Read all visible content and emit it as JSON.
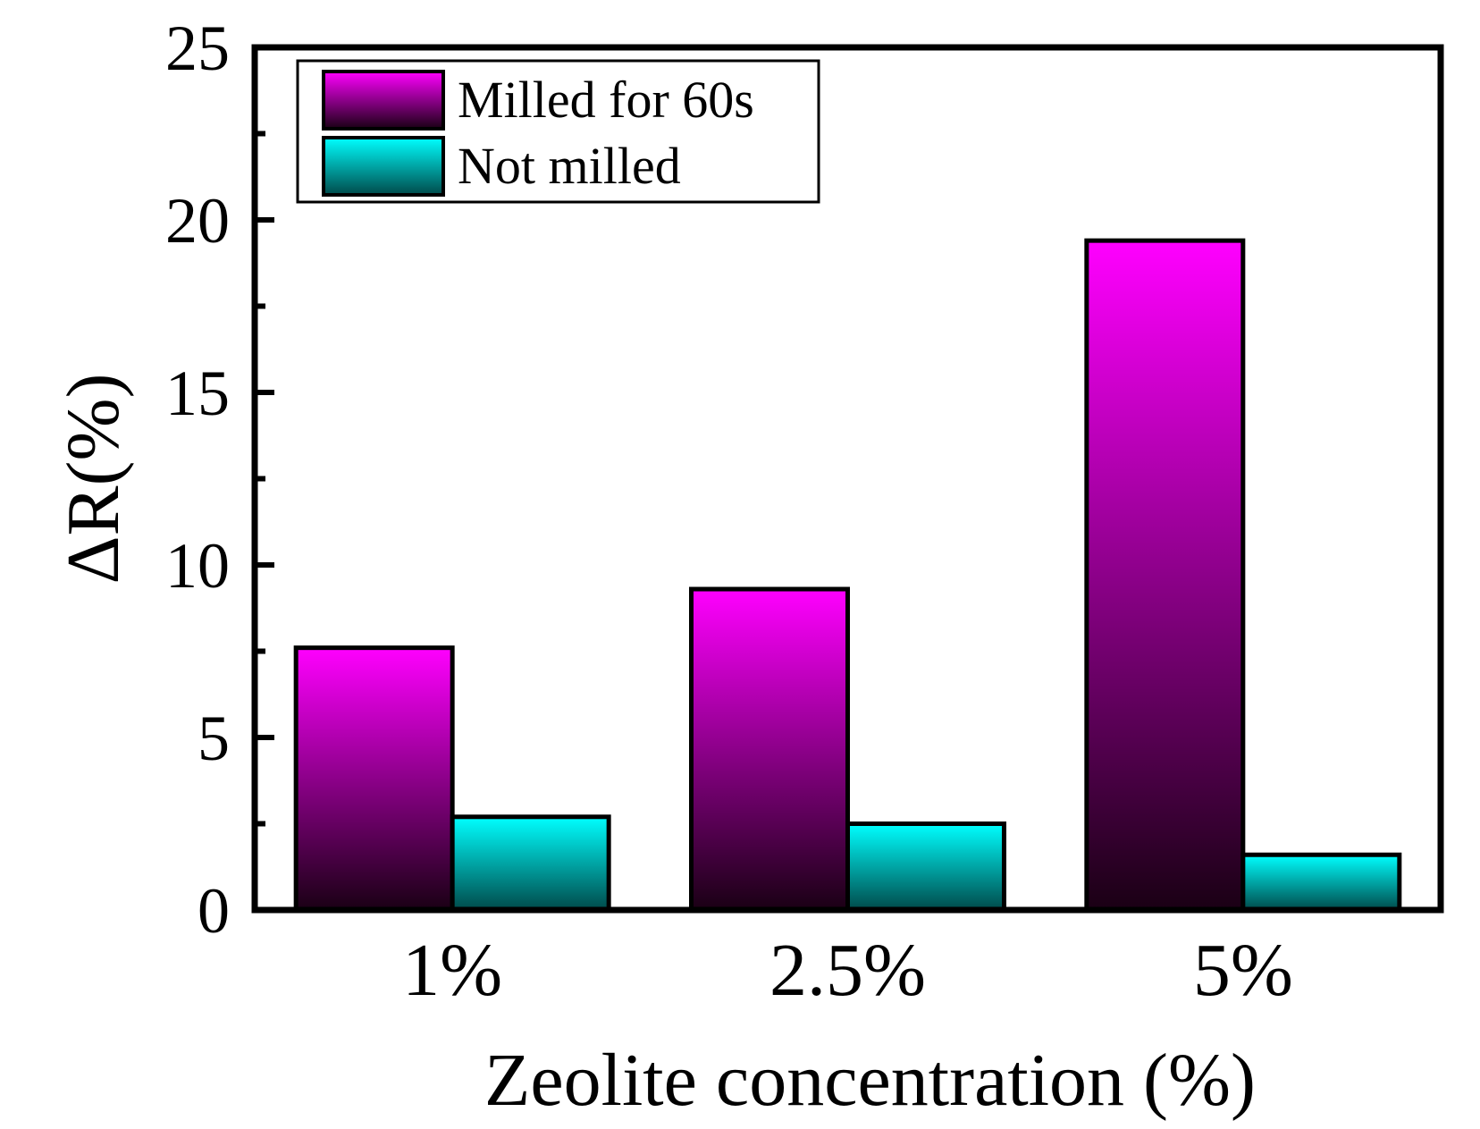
{
  "chart_data": {
    "type": "bar",
    "categories": [
      "1%",
      "2.5%",
      "5%"
    ],
    "series": [
      {
        "name": "Milled for 60s",
        "values": [
          7.6,
          9.3,
          19.4
        ],
        "color_top": "#ff00ff",
        "color_bottom": "#1a0014"
      },
      {
        "name": "Not milled",
        "values": [
          2.7,
          2.5,
          1.6
        ],
        "color_top": "#00ffff",
        "color_bottom": "#004a4a"
      }
    ],
    "title": "",
    "xlabel": "Zeolite concentration (%)",
    "ylabel": "ΔR(%)",
    "ylim": [
      0,
      25
    ],
    "yticks": [
      0,
      5,
      10,
      15,
      20,
      25
    ],
    "yticks_minor": [
      2.5,
      7.5,
      12.5,
      17.5,
      22.5
    ],
    "grid": false,
    "legend_position": "top-left"
  }
}
